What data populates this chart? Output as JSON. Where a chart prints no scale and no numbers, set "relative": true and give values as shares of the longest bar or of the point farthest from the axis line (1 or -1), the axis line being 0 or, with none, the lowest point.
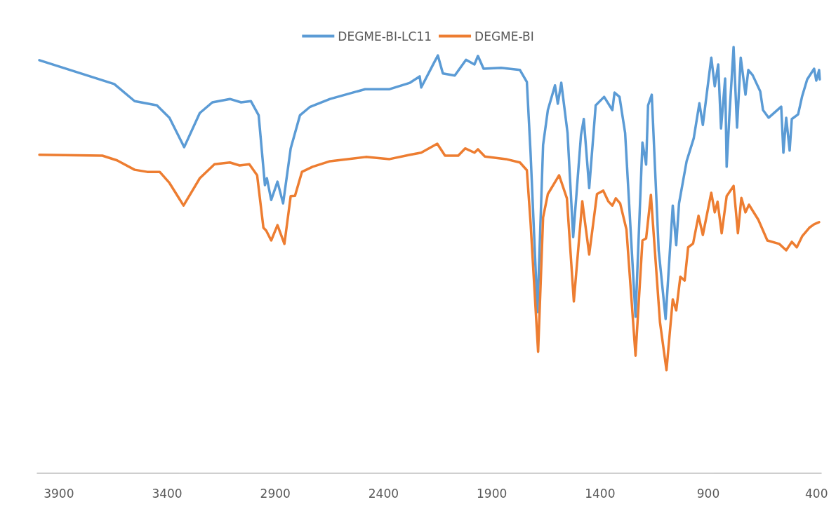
{
  "chart_data": {
    "type": "line",
    "relative": true,
    "legend": "top",
    "grid": false,
    "marker": "none",
    "line_style": "solid",
    "xlim": [
      4000,
      378
    ],
    "xticks": [
      3900,
      3400,
      2900,
      2400,
      1900,
      1400,
      900,
      400
    ],
    "series": [
      {
        "name": "DEGME-BI-LC11",
        "color": "#5b9bd5",
        "x": [
          3990,
          3644,
          3550,
          3447,
          3389,
          3321,
          3249,
          3191,
          3110,
          3058,
          3013,
          2977,
          2948,
          2939,
          2919,
          2890,
          2864,
          2829,
          2786,
          2741,
          2647,
          2485,
          2372,
          2278,
          2233,
          2226,
          2168,
          2149,
          2126,
          2071,
          2019,
          1980,
          1964,
          1938,
          1857,
          1770,
          1738,
          1721,
          1689,
          1663,
          1641,
          1608,
          1595,
          1579,
          1550,
          1524,
          1488,
          1475,
          1450,
          1420,
          1381,
          1343,
          1333,
          1310,
          1284,
          1236,
          1204,
          1187,
          1178,
          1161,
          1129,
          1097,
          1064,
          1048,
          1035,
          1000,
          967,
          941,
          925,
          886,
          870,
          854,
          841,
          822,
          815,
          802,
          783,
          767,
          750,
          728,
          715,
          695,
          660,
          647,
          621,
          563,
          553,
          540,
          524,
          514,
          485,
          466,
          443,
          411,
          401,
          388,
          385
        ],
        "values": [
          0.969,
          0.913,
          0.873,
          0.863,
          0.834,
          0.765,
          0.845,
          0.87,
          0.878,
          0.87,
          0.873,
          0.84,
          0.676,
          0.692,
          0.641,
          0.684,
          0.633,
          0.762,
          0.84,
          0.859,
          0.878,
          0.901,
          0.901,
          0.916,
          0.931,
          0.905,
          0.962,
          0.98,
          0.938,
          0.933,
          0.97,
          0.959,
          0.979,
          0.949,
          0.951,
          0.946,
          0.918,
          0.753,
          0.378,
          0.77,
          0.852,
          0.91,
          0.867,
          0.916,
          0.798,
          0.554,
          0.793,
          0.831,
          0.669,
          0.863,
          0.883,
          0.852,
          0.893,
          0.883,
          0.798,
          0.367,
          0.776,
          0.724,
          0.863,
          0.888,
          0.523,
          0.362,
          0.628,
          0.535,
          0.633,
          0.732,
          0.786,
          0.868,
          0.817,
          0.975,
          0.908,
          0.959,
          0.809,
          0.926,
          0.719,
          0.842,
          1.0,
          0.811,
          0.975,
          0.888,
          0.946,
          0.934,
          0.896,
          0.852,
          0.834,
          0.86,
          0.752,
          0.834,
          0.757,
          0.831,
          0.842,
          0.885,
          0.924,
          0.949,
          0.921,
          0.946,
          0.924
        ]
      },
      {
        "name": "DEGME-BI",
        "color": "#ed7d31",
        "x": [
          3990,
          3699,
          3631,
          3550,
          3492,
          3434,
          3389,
          3324,
          3249,
          3181,
          3110,
          3065,
          3020,
          2984,
          2955,
          2942,
          2919,
          2890,
          2858,
          2829,
          2809,
          2777,
          2728,
          2647,
          2482,
          2372,
          2278,
          2226,
          2152,
          2116,
          2055,
          2023,
          1980,
          1964,
          1932,
          1835,
          1770,
          1738,
          1721,
          1686,
          1663,
          1641,
          1589,
          1553,
          1521,
          1482,
          1450,
          1414,
          1385,
          1362,
          1343,
          1327,
          1307,
          1278,
          1236,
          1204,
          1187,
          1165,
          1123,
          1093,
          1064,
          1048,
          1029,
          1009,
          993,
          970,
          945,
          925,
          886,
          870,
          857,
          838,
          815,
          783,
          763,
          747,
          728,
          712,
          669,
          627,
          572,
          540,
          514,
          491,
          466,
          433,
          411,
          388
        ],
        "values": [
          0.747,
          0.745,
          0.734,
          0.712,
          0.707,
          0.707,
          0.681,
          0.628,
          0.692,
          0.725,
          0.729,
          0.722,
          0.725,
          0.699,
          0.576,
          0.569,
          0.546,
          0.582,
          0.538,
          0.65,
          0.651,
          0.707,
          0.719,
          0.732,
          0.742,
          0.737,
          0.747,
          0.752,
          0.773,
          0.745,
          0.745,
          0.762,
          0.752,
          0.76,
          0.743,
          0.737,
          0.729,
          0.711,
          0.589,
          0.285,
          0.6,
          0.655,
          0.699,
          0.645,
          0.403,
          0.638,
          0.513,
          0.655,
          0.663,
          0.638,
          0.628,
          0.645,
          0.633,
          0.572,
          0.276,
          0.546,
          0.551,
          0.653,
          0.354,
          0.242,
          0.408,
          0.382,
          0.461,
          0.452,
          0.53,
          0.539,
          0.604,
          0.559,
          0.658,
          0.612,
          0.637,
          0.563,
          0.65,
          0.674,
          0.563,
          0.646,
          0.612,
          0.63,
          0.595,
          0.546,
          0.538,
          0.523,
          0.543,
          0.53,
          0.556,
          0.576,
          0.584,
          0.589
        ]
      }
    ]
  }
}
